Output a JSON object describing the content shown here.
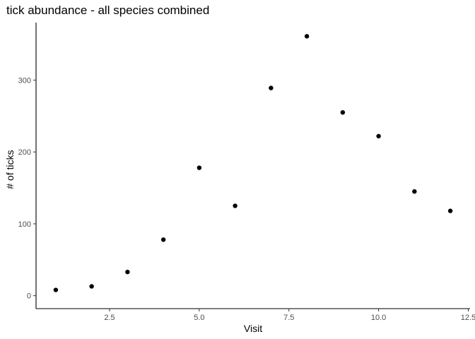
{
  "chart_data": {
    "type": "scatter",
    "title": "tick abundance - all species combined",
    "xlabel": "Visit",
    "ylabel": "# of ticks",
    "x": [
      1,
      2,
      3,
      4,
      5,
      6,
      7,
      8,
      9,
      10,
      11,
      12
    ],
    "y": [
      8,
      13,
      33,
      78,
      178,
      125,
      289,
      361,
      255,
      222,
      145,
      118
    ],
    "xlim": [
      0.45,
      12.55
    ],
    "ylim": [
      -18,
      380
    ],
    "xticks": [
      2.5,
      5.0,
      7.5,
      10.0,
      12.5
    ],
    "xtick_labels": [
      "2.5",
      "5.0",
      "7.5",
      "10.0",
      "12.5"
    ],
    "yticks": [
      0,
      100,
      200,
      300
    ],
    "ytick_labels": [
      "0",
      "100",
      "200",
      "300"
    ],
    "grid": false,
    "legend": "none",
    "point_color": "#000000"
  }
}
